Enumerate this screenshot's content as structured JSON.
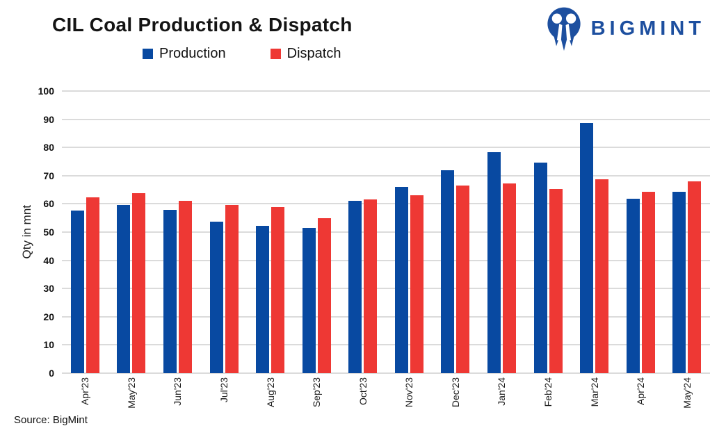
{
  "header": {
    "title": "CIL Coal Production & Dispatch",
    "logo": {
      "brand": "BIGMINT",
      "color": "#1d4f9f"
    }
  },
  "footer": {
    "source": "Source: BigMint"
  },
  "chart_data": {
    "type": "bar",
    "title": "CIL Coal Production & Dispatch",
    "categories": [
      "Apr'23",
      "May'23",
      "Jun'23",
      "Jul'23",
      "Aug'23",
      "Sep'23",
      "Oct'23",
      "Nov'23",
      "Dec'23",
      "Jan'24",
      "Feb'24",
      "Mar'24",
      "Apr'24",
      "May'24"
    ],
    "series": [
      {
        "name": "Production",
        "color": "#0849A1",
        "values": [
          57.6,
          59.7,
          57.9,
          53.7,
          52.2,
          51.4,
          61.0,
          65.9,
          71.9,
          78.4,
          74.6,
          88.6,
          61.8,
          64.4
        ]
      },
      {
        "name": "Dispatch",
        "color": "#EE3834",
        "values": [
          62.4,
          63.7,
          61.1,
          59.5,
          58.8,
          55.0,
          61.6,
          63.0,
          66.5,
          67.3,
          65.3,
          68.6,
          64.4,
          68.1
        ]
      }
    ],
    "xlabel": "",
    "ylabel": "Qty in mnt",
    "ylim": [
      0,
      100
    ],
    "ytick_step": 10,
    "grid": true,
    "gridline_color": "#dbdbdb",
    "legend_position": "top"
  }
}
